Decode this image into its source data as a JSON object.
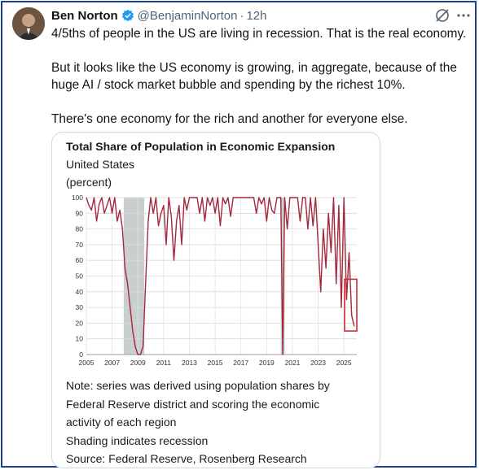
{
  "post": {
    "author_name": "Ben Norton",
    "handle": "@BenjaminNorton",
    "separator": "·",
    "time": "12h",
    "verified_icon": "verified-badge-icon",
    "paragraphs": [
      "4/5ths of people in the US are living in recession. That is the real economy.",
      "But it looks like the US economy is growing, in aggregate, because of the huge AI / stock market bubble and spending by the richest 10%.",
      "There's one economy for the rich and another for everyone else."
    ]
  },
  "colors": {
    "line": "#a3283c",
    "recession_shade": "#c9cfcf",
    "highlight_box": "#d62a35",
    "verified": "#1d9bf0"
  },
  "chart_data": {
    "type": "line",
    "title": "Total Share of Population in Economic Expansion",
    "subtitle": "United States",
    "unit": "(percent)",
    "ylim": [
      0,
      100
    ],
    "y_ticks": [
      0,
      10,
      20,
      30,
      40,
      50,
      60,
      70,
      80,
      90,
      100
    ],
    "xlim": [
      2005,
      2026
    ],
    "x_ticks": [
      2005,
      2007,
      2009,
      2011,
      2013,
      2015,
      2017,
      2019,
      2021,
      2023,
      2025
    ],
    "grid": true,
    "recessions": [
      [
        2007.9,
        2009.5
      ],
      [
        2020.1,
        2020.4
      ]
    ],
    "highlight": {
      "x": [
        2025.05,
        2026.0
      ],
      "y": [
        15,
        48
      ]
    },
    "series": [
      {
        "x": [
          2005.0,
          2005.2,
          2005.4,
          2005.6,
          2005.8,
          2006.0,
          2006.2,
          2006.4,
          2006.6,
          2006.8,
          2007.0,
          2007.2,
          2007.4,
          2007.6,
          2007.8,
          2008.0,
          2008.2,
          2008.4,
          2008.6,
          2008.8,
          2009.0,
          2009.2,
          2009.4,
          2009.6,
          2009.8,
          2010.0,
          2010.2,
          2010.4,
          2010.6,
          2010.8,
          2011.0,
          2011.2,
          2011.4,
          2011.6,
          2011.8,
          2012.0,
          2012.2,
          2012.4,
          2012.6,
          2012.8,
          2013.0,
          2013.2,
          2013.4,
          2013.6,
          2013.8,
          2014.0,
          2014.2,
          2014.4,
          2014.6,
          2014.8,
          2015.0,
          2015.2,
          2015.4,
          2015.6,
          2015.8,
          2016.0,
          2016.2,
          2016.4,
          2016.6,
          2016.8,
          2017.0,
          2017.2,
          2017.4,
          2017.6,
          2017.8,
          2018.0,
          2018.2,
          2018.4,
          2018.6,
          2018.8,
          2019.0,
          2019.2,
          2019.4,
          2019.6,
          2019.8,
          2020.0,
          2020.1,
          2020.25,
          2020.4,
          2020.6,
          2020.8,
          2021.0,
          2021.2,
          2021.4,
          2021.6,
          2021.8,
          2022.0,
          2022.2,
          2022.4,
          2022.6,
          2022.8,
          2023.0,
          2023.2,
          2023.4,
          2023.6,
          2023.8,
          2024.0,
          2024.2,
          2024.4,
          2024.6,
          2024.8,
          2025.0,
          2025.2,
          2025.4,
          2025.6,
          2025.8
        ],
        "y": [
          100,
          95,
          92,
          100,
          85,
          96,
          100,
          90,
          95,
          100,
          90,
          100,
          85,
          92,
          80,
          55,
          45,
          30,
          15,
          5,
          0,
          0,
          5,
          45,
          85,
          100,
          90,
          100,
          82,
          90,
          95,
          70,
          100,
          88,
          60,
          85,
          95,
          70,
          100,
          92,
          100,
          100,
          100,
          100,
          90,
          100,
          85,
          100,
          95,
          100,
          90,
          100,
          82,
          100,
          96,
          100,
          88,
          100,
          100,
          100,
          100,
          100,
          100,
          100,
          100,
          100,
          90,
          100,
          96,
          100,
          85,
          100,
          92,
          90,
          100,
          100,
          100,
          0,
          100,
          80,
          100,
          100,
          100,
          100,
          85,
          100,
          100,
          80,
          100,
          82,
          100,
          70,
          40,
          80,
          55,
          90,
          65,
          100,
          45,
          95,
          30,
          100,
          35,
          65,
          25,
          18
        ]
      }
    ]
  },
  "chart_notes": [
    "Note: series was derived using population shares by",
    "Federal Reserve district and scoring the economic",
    "activity of each region",
    "Shading indicates recession",
    "Source: Federal Reserve, Rosenberg Research"
  ]
}
